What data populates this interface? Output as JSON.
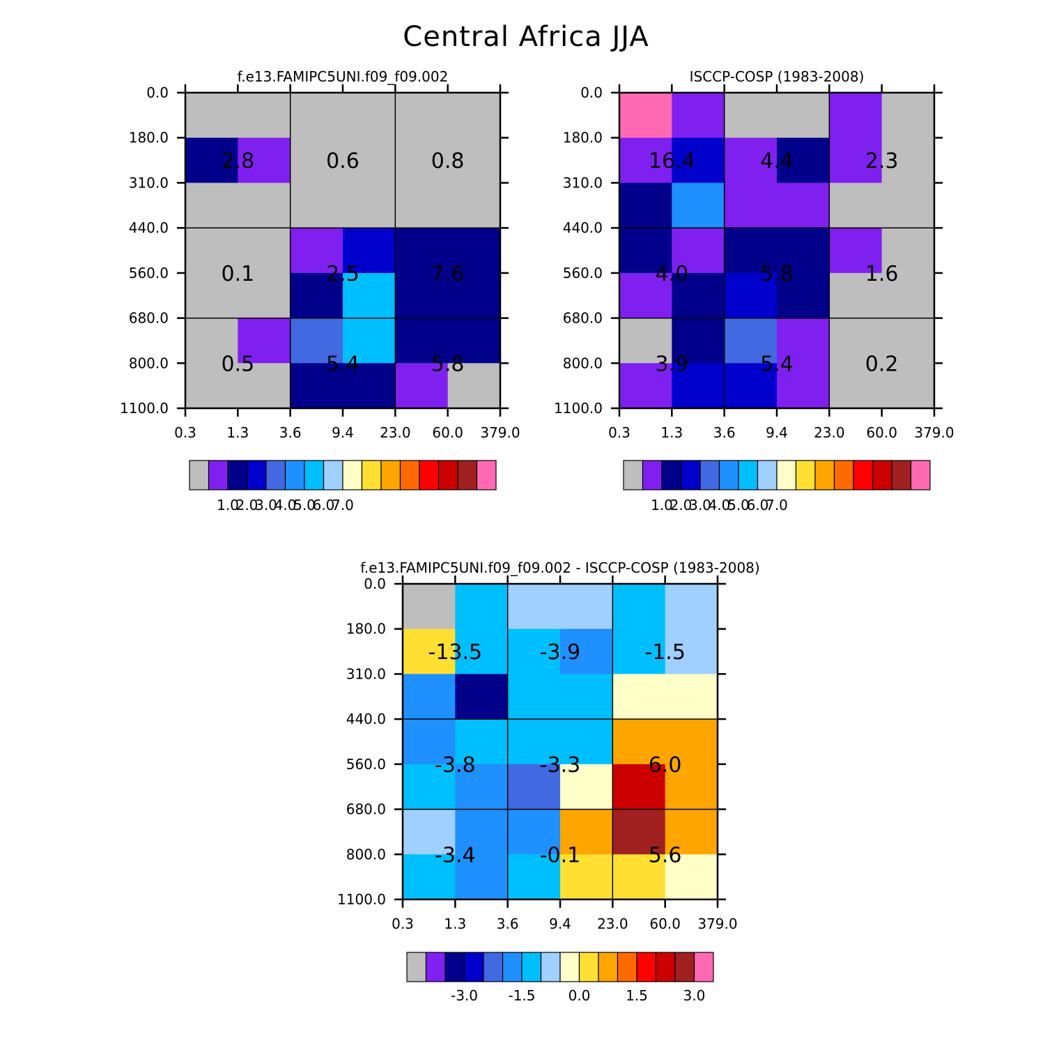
{
  "page_title": "Central Africa JJA",
  "palette": [
    "#BEBEBE",
    "#8020F0",
    "#00008B",
    "#0000CD",
    "#4169E1",
    "#1E90FF",
    "#00BFFF",
    "#A0D0FF",
    "#FFFFC8",
    "#FFE032",
    "#FFA500",
    "#FF6A00",
    "#FF0000",
    "#CD0000",
    "#A02020",
    "#FF69B4"
  ],
  "chart_data": [
    {
      "type": "heatmap",
      "title": "f.e13.FAMIPC5UNI.f09_f09.002",
      "x_ticks": [
        "0.3",
        "1.3",
        "3.6",
        "9.4",
        "23.0",
        "60.0",
        "379.0"
      ],
      "y_ticks": [
        "0.0",
        "180.0",
        "310.0",
        "440.0",
        "560.0",
        "680.0",
        "800.0",
        "1100.0"
      ],
      "cell_colors": [
        [
          0,
          0,
          0,
          0,
          0,
          0
        ],
        [
          2,
          1,
          0,
          0,
          0,
          0
        ],
        [
          0,
          0,
          0,
          0,
          0,
          0
        ],
        [
          0,
          0,
          1,
          3,
          2,
          2
        ],
        [
          0,
          0,
          2,
          6,
          2,
          2
        ],
        [
          0,
          1,
          4,
          6,
          2,
          2
        ],
        [
          0,
          0,
          2,
          2,
          1,
          0
        ]
      ],
      "group_labels": [
        [
          "2.8",
          "0.6",
          "0.8"
        ],
        [
          "0.1",
          "2.5",
          "7.6"
        ],
        [
          "0.5",
          "5.4",
          "5.8"
        ]
      ],
      "colorbar_labels": [
        "1.0",
        "2.0",
        "3.0",
        "4.0",
        "5.0",
        "6.0",
        "7.0"
      ]
    },
    {
      "type": "heatmap",
      "title": "ISCCP-COSP (1983-2008)",
      "x_ticks": [
        "0.3",
        "1.3",
        "3.6",
        "9.4",
        "23.0",
        "60.0",
        "379.0"
      ],
      "y_ticks": [
        "0.0",
        "180.0",
        "310.0",
        "440.0",
        "560.0",
        "680.0",
        "800.0",
        "1100.0"
      ],
      "cell_colors": [
        [
          15,
          1,
          0,
          0,
          1,
          0
        ],
        [
          1,
          3,
          1,
          2,
          1,
          0
        ],
        [
          2,
          5,
          1,
          1,
          0,
          0
        ],
        [
          2,
          1,
          2,
          2,
          1,
          0
        ],
        [
          1,
          2,
          3,
          2,
          0,
          0
        ],
        [
          0,
          2,
          4,
          1,
          0,
          0
        ],
        [
          1,
          3,
          3,
          1,
          0,
          0
        ]
      ],
      "group_labels": [
        [
          "16.4",
          "4.4",
          "2.3"
        ],
        [
          "4.0",
          "5.8",
          "1.6"
        ],
        [
          "3.9",
          "5.4",
          "0.2"
        ]
      ],
      "colorbar_labels": [
        "1.0",
        "2.0",
        "3.0",
        "4.0",
        "5.0",
        "6.0",
        "7.0"
      ]
    },
    {
      "type": "heatmap",
      "title": "f.e13.FAMIPC5UNI.f09_f09.002 - ISCCP-COSP (1983-2008)",
      "x_ticks": [
        "0.3",
        "1.3",
        "3.6",
        "9.4",
        "23.0",
        "60.0",
        "379.0"
      ],
      "y_ticks": [
        "0.0",
        "180.0",
        "310.0",
        "440.0",
        "560.0",
        "680.0",
        "800.0",
        "1100.0"
      ],
      "cell_colors": [
        [
          0,
          6,
          7,
          7,
          6,
          7
        ],
        [
          9,
          6,
          6,
          5,
          6,
          7
        ],
        [
          5,
          2,
          6,
          6,
          8,
          8
        ],
        [
          5,
          6,
          6,
          6,
          10,
          10
        ],
        [
          6,
          5,
          4,
          8,
          13,
          10
        ],
        [
          7,
          5,
          5,
          10,
          14,
          10
        ],
        [
          6,
          5,
          6,
          9,
          9,
          8
        ]
      ],
      "group_labels": [
        [
          "-13.5",
          "-3.9",
          "-1.5"
        ],
        [
          "-3.8",
          "-3.3",
          "6.0"
        ],
        [
          "-3.4",
          "-0.1",
          "5.6"
        ]
      ],
      "colorbar_labels": [
        "-3.0",
        "-1.5",
        "0.0",
        "1.5",
        "3.0"
      ]
    }
  ]
}
